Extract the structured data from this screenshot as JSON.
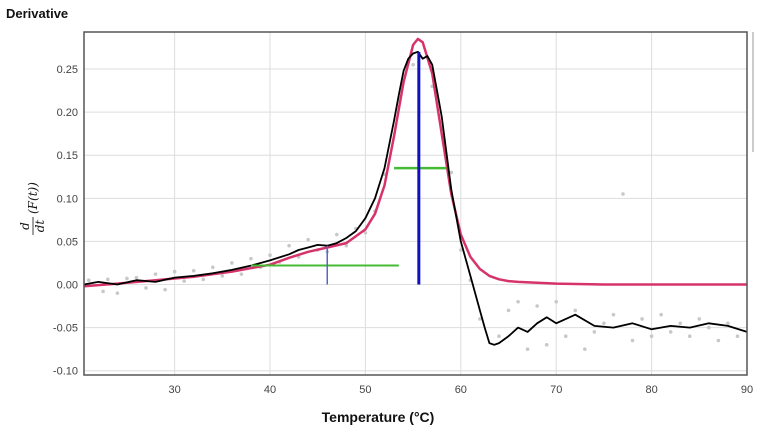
{
  "title": "Derivative",
  "chart_data": {
    "type": "line",
    "title": "Derivative",
    "xlabel": "Temperature (°C)",
    "ylabel": {
      "numerator": "d",
      "denominator": "dt",
      "expression": "(F(t))"
    },
    "xlim": [
      20.5,
      90
    ],
    "ylim": [
      -0.105,
      0.293
    ],
    "xticks": [
      30,
      40,
      50,
      60,
      70,
      80,
      90
    ],
    "yticks": [
      -0.1,
      -0.05,
      0.0,
      0.05,
      0.1,
      0.15,
      0.2,
      0.25
    ],
    "ytick_labels": [
      "-0.10",
      "-0.05",
      "0.00",
      "0.05",
      "0.10",
      "0.15",
      "0.20",
      "0.25"
    ],
    "grid": true,
    "colors": {
      "data": "#000000",
      "fit": "#d6336c",
      "scatter": "#c8c8c8",
      "peak": "#1010c0",
      "fwhm": "#44bb33",
      "marker": "#5566cc"
    },
    "series": [
      {
        "role": "measured-derivative",
        "x": [
          20.5,
          22,
          24,
          26,
          28,
          30,
          32,
          34,
          36,
          38,
          40,
          42,
          43,
          44,
          45,
          46,
          47,
          48,
          49,
          50,
          51,
          52,
          53,
          53.5,
          54,
          54.5,
          55,
          55.5,
          56,
          56.5,
          57,
          57.5,
          58,
          59,
          60,
          61,
          62,
          62.5,
          63,
          63.5,
          64,
          65,
          66,
          67,
          68,
          69,
          70,
          72,
          74,
          76,
          78,
          80,
          82,
          84,
          86,
          88,
          90
        ],
        "y": [
          0.0,
          0.003,
          0.0,
          0.005,
          0.003,
          0.008,
          0.01,
          0.013,
          0.017,
          0.022,
          0.028,
          0.035,
          0.04,
          0.043,
          0.046,
          0.045,
          0.048,
          0.054,
          0.062,
          0.077,
          0.1,
          0.135,
          0.19,
          0.22,
          0.248,
          0.262,
          0.268,
          0.27,
          0.262,
          0.265,
          0.255,
          0.225,
          0.195,
          0.11,
          0.05,
          0.01,
          -0.03,
          -0.05,
          -0.068,
          -0.07,
          -0.068,
          -0.06,
          -0.05,
          -0.055,
          -0.045,
          -0.038,
          -0.045,
          -0.035,
          -0.048,
          -0.05,
          -0.045,
          -0.052,
          -0.048,
          -0.05,
          -0.045,
          -0.048,
          -0.055
        ]
      },
      {
        "role": "fit",
        "x": [
          20.5,
          24,
          28,
          32,
          36,
          40,
          42,
          44,
          46,
          48,
          50,
          51,
          52,
          53,
          54,
          55,
          55.5,
          56,
          57,
          58,
          59,
          60,
          61,
          62,
          63,
          64,
          65,
          66,
          68,
          70,
          75,
          80,
          85,
          90
        ],
        "y": [
          -0.002,
          0.001,
          0.005,
          0.009,
          0.015,
          0.023,
          0.031,
          0.038,
          0.043,
          0.048,
          0.064,
          0.082,
          0.115,
          0.172,
          0.235,
          0.278,
          0.285,
          0.281,
          0.245,
          0.175,
          0.105,
          0.058,
          0.032,
          0.018,
          0.01,
          0.006,
          0.004,
          0.003,
          0.002,
          0.001,
          0.0,
          0.0,
          0.0,
          0.0
        ]
      }
    ],
    "scatter_points": {
      "x": [
        21,
        22.5,
        23,
        24,
        25,
        26,
        27,
        28,
        29,
        30,
        31,
        32,
        33,
        34,
        35,
        36,
        37,
        38,
        39,
        40,
        41,
        42,
        43,
        44,
        45,
        46,
        47,
        48,
        49,
        50,
        51,
        52,
        55,
        57,
        59,
        60,
        61,
        62,
        64,
        65,
        66,
        67,
        68,
        69,
        70,
        71,
        72,
        73,
        74,
        75,
        76,
        77,
        78,
        79,
        80,
        81,
        82,
        83,
        84,
        85,
        86,
        87,
        88,
        89
      ],
      "y": [
        0.005,
        -0.008,
        0.006,
        -0.01,
        0.007,
        0.008,
        -0.004,
        0.012,
        -0.006,
        0.015,
        0.004,
        0.016,
        0.006,
        0.02,
        0.01,
        0.025,
        0.012,
        0.03,
        0.02,
        0.034,
        0.026,
        0.045,
        0.032,
        0.052,
        0.04,
        0.038,
        0.058,
        0.045,
        0.065,
        0.06,
        0.085,
        0.128,
        0.255,
        0.23,
        0.13,
        0.04,
        0.005,
        -0.04,
        -0.06,
        -0.03,
        -0.02,
        -0.075,
        -0.025,
        -0.07,
        -0.02,
        -0.06,
        -0.03,
        -0.075,
        -0.055,
        -0.045,
        -0.035,
        0.105,
        -0.065,
        -0.04,
        -0.06,
        -0.035,
        -0.055,
        -0.045,
        -0.06,
        -0.04,
        -0.05,
        -0.065,
        -0.045,
        -0.06
      ]
    },
    "annotations": {
      "peak_line": {
        "x": 55.6,
        "y0": 0.0,
        "y1": 0.27
      },
      "fwhm_line": {
        "x0": 53.0,
        "x1": 58.5,
        "y": 0.135
      },
      "shoulder_line": {
        "x0": 38.0,
        "x1": 53.5,
        "y": 0.022
      },
      "shoulder_marker": {
        "x": 46.0,
        "y0": 0.0,
        "y1": 0.045
      }
    }
  }
}
